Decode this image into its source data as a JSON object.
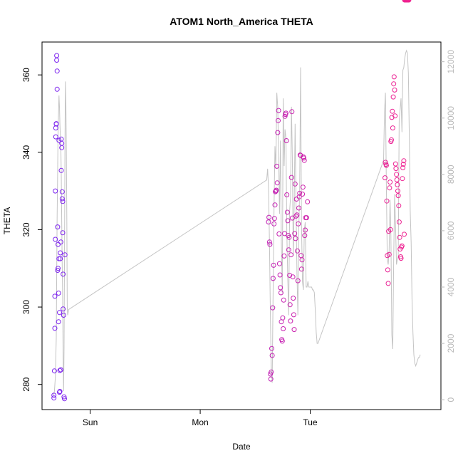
{
  "chart_data": {
    "type": "scatter",
    "title": "ATOM1 North_America THETA",
    "xlabel": "Date",
    "ylabel": "THETA",
    "x_ticks": [
      "Sun",
      "Mon",
      "Tue"
    ],
    "y_ticks_left": [
      "280",
      "300",
      "320",
      "340",
      "360"
    ],
    "y_ticks_right": [
      "0",
      "2000",
      "4000",
      "6000",
      "8000",
      "10000",
      "12000"
    ],
    "ylim_left": [
      273.5,
      368.5
    ],
    "ylim_right": [
      -350,
      12700
    ],
    "xlim_hours": [
      -10.5,
      76.5
    ],
    "grid": false,
    "colors": {
      "scatter_start": "#7b22f0",
      "scatter_end": "#f0228f",
      "line": "#c4c4c4",
      "axis": "#000000",
      "right_axis": "#b8b8b8"
    },
    "scatter_series": {
      "name": "THETA",
      "hours": [
        -7.9,
        -7.9,
        -7.8,
        -7.7,
        -7.7,
        -7.6,
        -7.6,
        -7.5,
        -7.5,
        -7.4,
        -7.4,
        -7.3,
        -7.3,
        -7.2,
        -7.2,
        -7.1,
        -7.1,
        -7.0,
        -7.0,
        -6.9,
        -6.9,
        -6.8,
        -6.8,
        -6.7,
        -6.7,
        -6.6,
        -6.6,
        -6.5,
        -6.5,
        -6.4,
        -6.4,
        -6.3,
        -6.3,
        -6.2,
        -6.2,
        -6.1,
        -6.1,
        -6.0,
        -6.0,
        -5.9,
        -5.9,
        -5.8,
        -5.7,
        -5.6,
        -5.5,
        38.9,
        39.0,
        39.1,
        39.2,
        39.3,
        39.4,
        39.5,
        39.6,
        39.7,
        39.8,
        39.9,
        40.0,
        40.1,
        40.2,
        40.3,
        40.4,
        40.5,
        40.6,
        40.7,
        40.8,
        40.9,
        41.0,
        41.1,
        41.2,
        41.3,
        41.4,
        41.5,
        41.6,
        41.7,
        41.8,
        41.9,
        42.0,
        42.1,
        42.2,
        42.3,
        42.4,
        42.5,
        42.6,
        42.7,
        42.8,
        42.9,
        43.0,
        43.1,
        43.2,
        43.3,
        43.4,
        43.5,
        43.6,
        43.7,
        43.8,
        43.9,
        44.0,
        44.1,
        44.2,
        44.3,
        44.4,
        44.5,
        44.6,
        44.7,
        44.8,
        44.9,
        45.0,
        45.1,
        45.2,
        45.3,
        45.4,
        45.5,
        45.6,
        45.7,
        45.8,
        45.9,
        46.0,
        46.1,
        46.2,
        46.3,
        46.4,
        46.5,
        46.6,
        46.7,
        46.8,
        46.9,
        47.0,
        47.2,
        47.4,
        64.3,
        64.4,
        64.5,
        64.6,
        64.7,
        64.8,
        64.9,
        65.0,
        65.1,
        65.2,
        65.3,
        65.4,
        65.5,
        65.6,
        65.7,
        65.8,
        65.9,
        66.0,
        66.1,
        66.2,
        66.3,
        66.4,
        66.5,
        66.6,
        66.7,
        66.8,
        66.9,
        67.0,
        67.1,
        67.2,
        67.3,
        67.4,
        67.5,
        67.6,
        67.7,
        67.8,
        67.9,
        68.0,
        68.1,
        68.2,
        68.3,
        68.4,
        68.5,
        68.6,
        68.7,
        68.8,
        68.9,
        69.0,
        69.1,
        69.2,
        69.3,
        69.4,
        69.5
      ],
      "theta": [
        276.5,
        277.2,
        283.5,
        294.5,
        302.8,
        317.5,
        330.0,
        344.0,
        346.3,
        347.4,
        347.3,
        365.0,
        363.8,
        356.3,
        361.0,
        320.7,
        309.5,
        310.0,
        316.2,
        303.6,
        296.2,
        312.5,
        343.1,
        298.6,
        278.0,
        278.2,
        283.6,
        314.0,
        312.5,
        283.8,
        316.8,
        335.3,
        343.4,
        342.3,
        341.2,
        329.8,
        328.0,
        327.3,
        319.2,
        308.5,
        299.5,
        297.9,
        276.8,
        276.3,
        313.5,
        322.0,
        323.2,
        316.8,
        316.2,
        282.7,
        281.4,
        283.2,
        289.3,
        287.5,
        299.8,
        307.4,
        310.8,
        321.5,
        322.9,
        326.4,
        329.8,
        330.0,
        330.2,
        336.4,
        332.1,
        345.1,
        348.2,
        350.8,
        318.9,
        311.2,
        308.3,
        305.0,
        303.7,
        296.2,
        291.6,
        291.2,
        297.2,
        294.4,
        301.8,
        313.2,
        319.0,
        349.3,
        349.8,
        350.1,
        343.0,
        329.0,
        324.5,
        322.3,
        318.5,
        314.8,
        318.0,
        308.2,
        300.6,
        296.4,
        313.5,
        333.5,
        350.5,
        323.0,
        307.8,
        302.3,
        298.0,
        294.2,
        319.0,
        331.8,
        317.7,
        323.5,
        327.9,
        323.8,
        314.5,
        306.8,
        321.5,
        325.6,
        328.5,
        329.4,
        339.3,
        339.2,
        313.3,
        309.8,
        312.2,
        329.2,
        331.0,
        338.8,
        338.5,
        337.9,
        318.5,
        319.9,
        323.1,
        323.1,
        327.2,
        333.4,
        337.4,
        336.9,
        336.6,
        327.4,
        313.3,
        309.6,
        306.1,
        319.6,
        313.6,
        330.8,
        332.3,
        320.0,
        342.8,
        343.2,
        349.0,
        350.6,
        346.3,
        354.3,
        357.7,
        359.5,
        356.1,
        349.4,
        337.0,
        335.8,
        334.3,
        332.9,
        331.6,
        330.0,
        328.8,
        326.2,
        322.0,
        318.0,
        315.0,
        313.0,
        312.6,
        315.5,
        315.8,
        333.2,
        336.0,
        336.9,
        337.8,
        318.8
      ]
    },
    "line_series": {
      "name": "",
      "axis": "right",
      "hours": [
        -8.0,
        -7.8,
        -7.6,
        -7.4,
        -7.3,
        -7.2,
        -7.1,
        -7.0,
        -6.9,
        -6.8,
        -6.7,
        -6.6,
        -6.5,
        -6.4,
        -6.3,
        -6.2,
        -6.1,
        -6.0,
        -5.9,
        -5.8,
        -5.7,
        -5.6,
        -5.5,
        -5.4,
        -5.3,
        -5.2,
        -5.1,
        -5.0,
        -4.9,
        -4.8,
        -4.7,
        38.5,
        38.7,
        38.9,
        39.1,
        39.3,
        39.5,
        39.7,
        39.9,
        40.1,
        40.3,
        40.5,
        40.7,
        40.9,
        41.1,
        41.3,
        41.5,
        41.7,
        41.9,
        42.1,
        42.3,
        42.5,
        42.7,
        42.9,
        43.1,
        43.3,
        43.5,
        43.7,
        43.9,
        44.1,
        44.3,
        44.5,
        44.7,
        44.9,
        45.1,
        45.3,
        45.5,
        45.7,
        45.9,
        46.1,
        46.3,
        46.5,
        46.7,
        46.9,
        47.1,
        47.3,
        47.5,
        47.7,
        47.9,
        48.1,
        48.3,
        48.5,
        48.7,
        48.9,
        49.1,
        49.3,
        49.5,
        49.7,
        49.9,
        64.0,
        64.2,
        64.4,
        64.6,
        64.8,
        65.0,
        65.2,
        65.4,
        65.6,
        65.8,
        66.0,
        66.2,
        66.4,
        66.6,
        66.8,
        67.0,
        67.2,
        67.4,
        67.6,
        67.8,
        68.0,
        68.2,
        68.4,
        68.6,
        68.8,
        69.0,
        69.2,
        69.4,
        69.6,
        69.8,
        70.0,
        70.2,
        70.4,
        70.6,
        70.8,
        71.0,
        71.2,
        71.4,
        71.6,
        71.8,
        72.0
      ],
      "values": [
        150,
        300,
        800,
        2200,
        4500,
        6500,
        8000,
        9500,
        10200,
        10800,
        10400,
        9800,
        9400,
        9000,
        8000,
        6200,
        4800,
        3500,
        1500,
        300,
        1800,
        4800,
        9000,
        11300,
        10500,
        9000,
        6500,
        3300,
        3000,
        3100,
        3200,
        7800,
        8200,
        7500,
        5600,
        3000,
        1100,
        600,
        3800,
        6800,
        9000,
        8200,
        10900,
        10400,
        8800,
        6600,
        9200,
        5600,
        3800,
        10700,
        8300,
        9600,
        9300,
        5900,
        4300,
        3000,
        6700,
        7200,
        10400,
        8600,
        5100,
        6900,
        9800,
        6900,
        4500,
        3000,
        6100,
        7400,
        11800,
        6200,
        4200,
        3900,
        6000,
        6300,
        4000,
        4000,
        4200,
        4000,
        4000,
        4000,
        4000,
        3900,
        3900,
        3800,
        3200,
        2400,
        2000,
        2000,
        2100,
        8500,
        10200,
        10900,
        7600,
        5000,
        4800,
        5300,
        7100,
        5800,
        2300,
        1800,
        5000,
        7300,
        6200,
        4800,
        5000,
        5100,
        9900,
        10300,
        10700,
        9500,
        11700,
        11800,
        12100,
        12300,
        12400,
        12300,
        11600,
        9400,
        6700,
        5600,
        3600,
        2400,
        1600,
        1300,
        1200,
        1300,
        1400,
        1500,
        1500,
        1600
      ]
    }
  }
}
